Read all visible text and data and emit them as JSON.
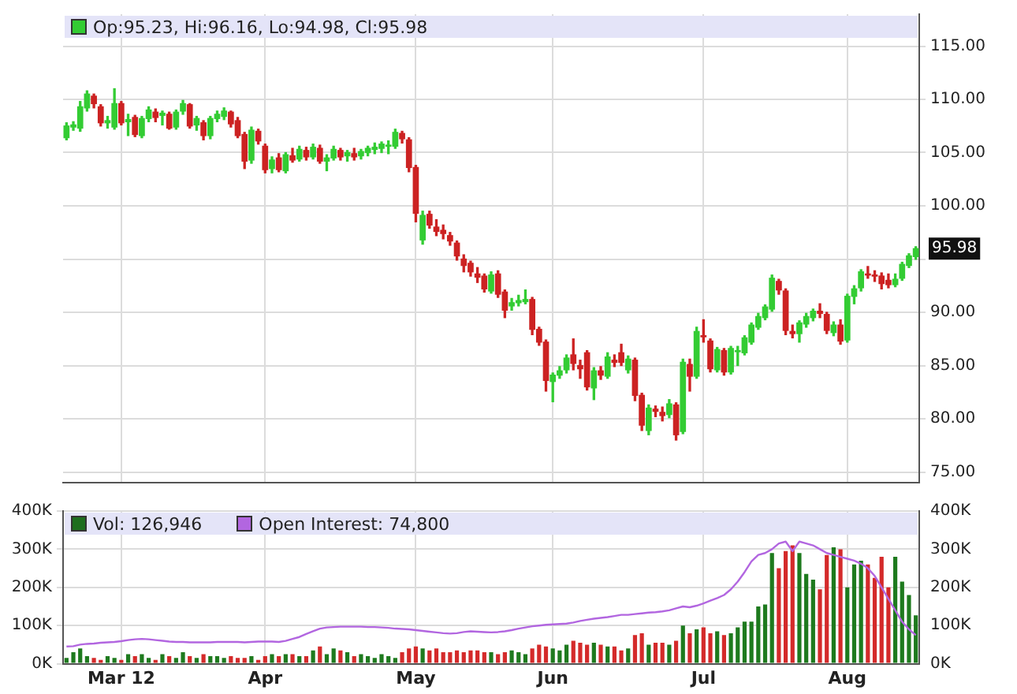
{
  "chart_data": [
    {
      "type": "candlestick",
      "categories": [
        null,
        null,
        null,
        null,
        null,
        null,
        null,
        null,
        null,
        null,
        null,
        null,
        null,
        null,
        null,
        null,
        null,
        null,
        null,
        null,
        null,
        null,
        null,
        null,
        null,
        null,
        null,
        null,
        null,
        null,
        null,
        null,
        null,
        null,
        null,
        null,
        null,
        null,
        null,
        null,
        null,
        null,
        null,
        null,
        null,
        null,
        null,
        null,
        null,
        null,
        null,
        null,
        null,
        null,
        null,
        null,
        null,
        null,
        null,
        null,
        null,
        null,
        null,
        null,
        null,
        null,
        null,
        null,
        null,
        null,
        null,
        null,
        null,
        null,
        null,
        null,
        null,
        null,
        null,
        null,
        null,
        null,
        null,
        null,
        null,
        null,
        null,
        null,
        null,
        null,
        null,
        null,
        null,
        null,
        null,
        null,
        null,
        null,
        null,
        null,
        null,
        null,
        null,
        null,
        null,
        null,
        null,
        null,
        null,
        null,
        null,
        null,
        null,
        null,
        null,
        null,
        null,
        null,
        null,
        null,
        null,
        null,
        null,
        null,
        null
      ],
      "series": [
        {
          "name": "Op:95.23, Hi:96.16, Lo:94.98, Cl:95.98",
          "color": "#33cc33",
          "colors": [
            "#33cc33",
            "#33cc33",
            "#33cc33",
            "#33cc33",
            "#cc2222",
            "#cc2222",
            "#33cc33",
            "#33cc33",
            "#cc2222",
            "#33cc33",
            "#cc2222",
            "#33cc33",
            "#33cc33",
            "#cc2222",
            "#33cc33",
            "#cc2222",
            "#33cc33",
            "#33cc33",
            "#cc2222",
            "#33cc33",
            "#cc2222",
            "#33cc33",
            "#33cc33",
            "#33cc33",
            "#cc2222",
            "#cc2222",
            "#cc2222",
            "#33cc33",
            "#cc2222",
            "#cc2222",
            "#33cc33",
            "#cc2222",
            "#33cc33",
            "#cc2222",
            "#33cc33",
            "#cc2222",
            "#33cc33",
            "#cc2222",
            "#33cc33",
            "#33cc33",
            "#cc2222",
            "#33cc33",
            "#cc2222",
            "#33cc33",
            "#33cc33",
            "#33cc33",
            "#33cc33",
            "#33cc33",
            "#33cc33",
            "#cc2222",
            "#cc2222",
            "#cc2222",
            "#33cc33",
            "#cc2222",
            "#cc2222",
            "#cc2222",
            "#cc2222",
            "#cc2222",
            "#cc2222",
            "#cc2222",
            "#cc2222",
            "#cc2222",
            "#33cc33",
            "#cc2222",
            "#cc2222",
            "#33cc33",
            "#33cc33",
            "#33cc33",
            "#cc2222",
            "#cc2222",
            "#cc2222",
            "#33cc33",
            "#33cc33",
            "#33cc33",
            "#cc2222",
            "#cc2222",
            "#cc2222",
            "#33cc33",
            "#cc2222",
            "#33cc33",
            "#cc2222",
            "#cc2222",
            "#33cc33",
            "#cc2222",
            "#cc2222",
            "#33cc33",
            "#cc2222",
            "#cc2222",
            "#33cc33",
            "#cc2222",
            "#33cc33",
            "#cc2222",
            "#33cc33",
            "#cc2222",
            "#cc2222",
            "#33cc33",
            "#cc2222",
            "#33cc33",
            "#33cc33",
            "#33cc33",
            "#33cc33",
            "#33cc33",
            "#33cc33",
            "#33cc33",
            "#cc2222",
            "#cc2222",
            "#cc2222",
            "#33cc33",
            "#33cc33",
            "#33cc33",
            "#cc2222",
            "#cc2222",
            "#33cc33",
            "#cc2222",
            "#33cc33",
            "#33cc33",
            "#33cc33",
            "#cc2222",
            "#cc2222",
            "#cc2222",
            "#cc2222",
            "#33cc33",
            "#33cc33",
            "#33cc33",
            "#33cc33"
          ],
          "ohlc": [
            [
              106.4,
              107.8,
              106.2,
              107.5
            ],
            [
              107.4,
              107.9,
              107.1,
              107.6
            ],
            [
              107.3,
              109.8,
              107.0,
              109.3
            ],
            [
              109.2,
              110.8,
              108.9,
              110.5
            ],
            [
              110.3,
              110.5,
              109.2,
              109.6
            ],
            [
              109.3,
              109.5,
              107.5,
              107.8
            ],
            [
              107.8,
              108.4,
              107.3,
              108.0
            ],
            [
              107.4,
              111.0,
              107.2,
              109.6
            ],
            [
              109.6,
              109.8,
              107.6,
              107.8
            ],
            [
              107.9,
              108.6,
              106.6,
              108.1
            ],
            [
              108.3,
              108.5,
              106.5,
              106.7
            ],
            [
              106.6,
              108.4,
              106.4,
              108.2
            ],
            [
              108.2,
              109.3,
              107.9,
              109.0
            ],
            [
              108.8,
              109.1,
              107.9,
              108.3
            ],
            [
              108.5,
              108.9,
              107.6,
              108.7
            ],
            [
              108.6,
              108.8,
              107.2,
              107.3
            ],
            [
              107.4,
              109.0,
              107.2,
              108.8
            ],
            [
              108.9,
              109.9,
              108.6,
              109.6
            ],
            [
              109.5,
              109.6,
              107.3,
              107.5
            ],
            [
              107.6,
              108.4,
              107.1,
              108.2
            ],
            [
              107.8,
              108.0,
              106.2,
              106.6
            ],
            [
              106.6,
              108.4,
              106.3,
              108.2
            ],
            [
              108.2,
              108.9,
              107.9,
              108.6
            ],
            [
              108.4,
              109.2,
              108.1,
              108.9
            ],
            [
              108.8,
              108.9,
              107.4,
              107.7
            ],
            [
              108.0,
              108.3,
              106.4,
              106.6
            ],
            [
              106.7,
              106.9,
              103.5,
              104.2
            ],
            [
              104.3,
              107.4,
              104.0,
              107.1
            ],
            [
              107.0,
              107.2,
              105.8,
              106.1
            ],
            [
              105.6,
              105.8,
              103.1,
              103.4
            ],
            [
              103.5,
              104.6,
              103.1,
              104.3
            ],
            [
              104.5,
              104.9,
              103.2,
              103.4
            ],
            [
              103.3,
              105.0,
              103.1,
              104.8
            ],
            [
              104.7,
              105.4,
              104.1,
              104.3
            ],
            [
              104.4,
              105.6,
              104.2,
              105.3
            ],
            [
              105.2,
              105.5,
              104.3,
              104.6
            ],
            [
              104.6,
              105.8,
              104.4,
              105.5
            ],
            [
              105.4,
              105.7,
              104.0,
              104.2
            ],
            [
              104.2,
              104.8,
              103.3,
              104.5
            ],
            [
              104.5,
              105.6,
              104.3,
              105.3
            ],
            [
              105.2,
              105.4,
              104.3,
              104.6
            ],
            [
              104.7,
              105.2,
              104.2,
              105.0
            ],
            [
              104.9,
              105.4,
              104.3,
              104.6
            ],
            [
              104.7,
              105.3,
              104.4,
              105.1
            ],
            [
              105.0,
              105.6,
              104.7,
              105.4
            ],
            [
              105.3,
              105.9,
              104.9,
              105.5
            ],
            [
              105.4,
              106.0,
              105.0,
              105.8
            ],
            [
              105.6,
              106.1,
              104.9,
              105.7
            ],
            [
              105.6,
              107.2,
              105.4,
              106.9
            ],
            [
              106.8,
              107.0,
              105.9,
              106.3
            ],
            [
              106.2,
              106.4,
              103.2,
              103.6
            ],
            [
              103.6,
              103.8,
              98.5,
              99.3
            ],
            [
              96.8,
              99.5,
              96.4,
              99.1
            ],
            [
              99.2,
              99.5,
              97.9,
              98.2
            ],
            [
              98.0,
              98.7,
              97.2,
              97.6
            ],
            [
              97.7,
              98.2,
              96.9,
              97.4
            ],
            [
              97.2,
              97.5,
              96.3,
              96.7
            ],
            [
              96.5,
              96.7,
              94.9,
              95.3
            ],
            [
              95.0,
              95.4,
              93.8,
              94.4
            ],
            [
              94.6,
              94.8,
              93.4,
              93.8
            ],
            [
              93.6,
              94.2,
              92.8,
              93.3
            ],
            [
              93.4,
              93.6,
              91.9,
              92.2
            ],
            [
              92.0,
              93.8,
              91.8,
              93.5
            ],
            [
              93.6,
              93.9,
              91.4,
              91.7
            ],
            [
              91.9,
              92.1,
              89.5,
              90.2
            ],
            [
              90.6,
              91.3,
              90.2,
              90.9
            ],
            [
              90.9,
              91.6,
              90.6,
              91.1
            ],
            [
              91.0,
              92.1,
              90.8,
              91.2
            ],
            [
              91.2,
              91.4,
              87.9,
              88.4
            ],
            [
              88.4,
              88.6,
              86.9,
              87.2
            ],
            [
              87.2,
              87.4,
              82.6,
              83.6
            ],
            [
              83.5,
              84.3,
              81.6,
              84.1
            ],
            [
              84.1,
              84.9,
              83.8,
              84.5
            ],
            [
              84.6,
              86.0,
              84.3,
              85.7
            ],
            [
              86.0,
              87.5,
              84.6,
              85.2
            ],
            [
              85.0,
              85.5,
              83.8,
              84.7
            ],
            [
              86.2,
              86.4,
              82.7,
              83.0
            ],
            [
              82.9,
              84.8,
              81.8,
              84.5
            ],
            [
              84.5,
              84.9,
              83.7,
              84.1
            ],
            [
              84.0,
              86.2,
              83.8,
              85.8
            ],
            [
              85.5,
              86.0,
              84.9,
              85.3
            ],
            [
              86.2,
              87.0,
              85.0,
              85.3
            ],
            [
              84.6,
              85.9,
              84.3,
              85.6
            ],
            [
              85.5,
              85.7,
              81.7,
              82.2
            ],
            [
              82.2,
              82.4,
              78.9,
              79.4
            ],
            [
              78.9,
              81.3,
              78.5,
              81.0
            ],
            [
              80.9,
              81.2,
              80.2,
              80.7
            ],
            [
              80.6,
              81.1,
              79.8,
              80.3
            ],
            [
              80.4,
              81.8,
              80.1,
              81.4
            ],
            [
              81.3,
              81.5,
              78.0,
              78.5
            ],
            [
              78.8,
              85.6,
              78.6,
              85.3
            ],
            [
              85.1,
              85.6,
              82.6,
              84.0
            ],
            [
              84.0,
              88.6,
              83.8,
              88.2
            ],
            [
              87.8,
              89.3,
              87.2,
              87.7
            ],
            [
              87.3,
              87.5,
              84.4,
              84.7
            ],
            [
              84.6,
              86.7,
              84.4,
              86.5
            ],
            [
              86.4,
              86.6,
              84.1,
              84.4
            ],
            [
              84.4,
              86.8,
              84.2,
              86.6
            ],
            [
              86.3,
              86.8,
              85.0,
              86.4
            ],
            [
              86.2,
              87.8,
              86.0,
              87.6
            ],
            [
              87.2,
              89.0,
              87.0,
              88.8
            ],
            [
              88.6,
              89.9,
              88.4,
              89.6
            ],
            [
              89.5,
              90.7,
              89.3,
              90.5
            ],
            [
              90.3,
              93.5,
              90.1,
              93.2
            ],
            [
              92.9,
              93.1,
              91.7,
              92.1
            ],
            [
              92.0,
              92.2,
              87.9,
              88.3
            ],
            [
              88.2,
              88.8,
              87.6,
              88.0
            ],
            [
              88.0,
              89.2,
              87.2,
              89.0
            ],
            [
              88.9,
              89.9,
              88.6,
              89.6
            ],
            [
              89.5,
              90.3,
              89.2,
              90.1
            ],
            [
              90.1,
              90.8,
              89.5,
              89.9
            ],
            [
              89.8,
              90.0,
              88.0,
              88.3
            ],
            [
              88.1,
              89.1,
              87.8,
              88.8
            ],
            [
              88.8,
              89.3,
              87.0,
              87.3
            ],
            [
              87.4,
              91.7,
              87.2,
              91.5
            ],
            [
              91.5,
              92.5,
              90.8,
              92.2
            ],
            [
              92.3,
              94.0,
              92.0,
              93.8
            ],
            [
              93.6,
              94.3,
              93.2,
              93.5
            ],
            [
              93.5,
              93.9,
              92.9,
              93.4
            ],
            [
              93.4,
              93.7,
              92.2,
              92.7
            ],
            [
              93.0,
              93.6,
              92.3,
              92.6
            ],
            [
              92.6,
              93.6,
              92.4,
              93.1
            ],
            [
              93.2,
              94.7,
              93.0,
              94.5
            ],
            [
              94.4,
              95.5,
              94.2,
              95.3
            ],
            [
              95.23,
              96.16,
              94.98,
              95.98
            ]
          ]
        }
      ],
      "ylim": [
        74,
        118
      ],
      "yticks": [
        {
          "value": 75,
          "label": "75.00"
        },
        {
          "value": 80,
          "label": "80.00"
        },
        {
          "value": 85,
          "label": "85.00"
        },
        {
          "value": 90,
          "label": "90.00"
        },
        {
          "value": 95,
          "label": null
        },
        {
          "value": 100,
          "label": "100.00"
        },
        {
          "value": 105,
          "label": "105.00"
        },
        {
          "value": 110,
          "label": "110.00"
        },
        {
          "value": 115,
          "label": "115.00"
        }
      ],
      "grid": true,
      "legend": "top left",
      "tick_labels": "y",
      "annotations": [
        "95.98"
      ]
    },
    {
      "type": "bar",
      "categories": [
        null,
        null,
        null,
        null,
        null,
        null,
        null,
        null,
        "Mar 12",
        null,
        null,
        null,
        null,
        null,
        null,
        null,
        null,
        null,
        null,
        null,
        null,
        null,
        null,
        null,
        null,
        null,
        null,
        null,
        null,
        "Apr",
        null,
        null,
        null,
        null,
        null,
        null,
        null,
        null,
        null,
        null,
        null,
        null,
        null,
        null,
        null,
        null,
        null,
        null,
        null,
        null,
        null,
        "May",
        null,
        null,
        null,
        null,
        null,
        null,
        null,
        null,
        null,
        null,
        null,
        null,
        null,
        null,
        null,
        null,
        null,
        null,
        null,
        "Jun",
        null,
        null,
        null,
        null,
        null,
        null,
        null,
        null,
        null,
        null,
        null,
        null,
        null,
        null,
        null,
        null,
        null,
        null,
        null,
        null,
        null,
        "Jul",
        null,
        null,
        null,
        null,
        null,
        null,
        null,
        null,
        null,
        null,
        null,
        null,
        null,
        null,
        null,
        null,
        null,
        null,
        null,
        null,
        "Aug",
        null,
        null,
        null,
        null,
        null,
        null,
        null,
        null,
        null,
        null
      ],
      "series": [
        {
          "name": "Vol: 126,946",
          "color": "#1e6e1e",
          "colors": [
            "#1e7a1e",
            "#1e7a1e",
            "#1e7a1e",
            "#1e7a1e",
            "#d42a2a",
            "#d42a2a",
            "#1e7a1e",
            "#1e7a1e",
            "#d42a2a",
            "#1e7a1e",
            "#d42a2a",
            "#1e7a1e",
            "#1e7a1e",
            "#d42a2a",
            "#1e7a1e",
            "#d42a2a",
            "#1e7a1e",
            "#1e7a1e",
            "#d42a2a",
            "#1e7a1e",
            "#d42a2a",
            "#1e7a1e",
            "#1e7a1e",
            "#1e7a1e",
            "#d42a2a",
            "#d42a2a",
            "#d42a2a",
            "#1e7a1e",
            "#d42a2a",
            "#d42a2a",
            "#1e7a1e",
            "#d42a2a",
            "#1e7a1e",
            "#d42a2a",
            "#1e7a1e",
            "#d42a2a",
            "#1e7a1e",
            "#d42a2a",
            "#1e7a1e",
            "#1e7a1e",
            "#d42a2a",
            "#1e7a1e",
            "#d42a2a",
            "#1e7a1e",
            "#1e7a1e",
            "#1e7a1e",
            "#1e7a1e",
            "#1e7a1e",
            "#1e7a1e",
            "#d42a2a",
            "#d42a2a",
            "#d42a2a",
            "#1e7a1e",
            "#d42a2a",
            "#d42a2a",
            "#d42a2a",
            "#d42a2a",
            "#d42a2a",
            "#d42a2a",
            "#d42a2a",
            "#d42a2a",
            "#d42a2a",
            "#1e7a1e",
            "#d42a2a",
            "#d42a2a",
            "#1e7a1e",
            "#1e7a1e",
            "#1e7a1e",
            "#d42a2a",
            "#d42a2a",
            "#d42a2a",
            "#1e7a1e",
            "#1e7a1e",
            "#1e7a1e",
            "#d42a2a",
            "#d42a2a",
            "#d42a2a",
            "#1e7a1e",
            "#d42a2a",
            "#1e7a1e",
            "#d42a2a",
            "#d42a2a",
            "#1e7a1e",
            "#d42a2a",
            "#d42a2a",
            "#1e7a1e",
            "#d42a2a",
            "#d42a2a",
            "#1e7a1e",
            "#d42a2a",
            "#1e7a1e",
            "#d42a2a",
            "#1e7a1e",
            "#d42a2a",
            "#d42a2a",
            "#1e7a1e",
            "#d42a2a",
            "#1e7a1e",
            "#1e7a1e",
            "#1e7a1e",
            "#1e7a1e",
            "#1e7a1e",
            "#1e7a1e",
            "#1e7a1e",
            "#d42a2a",
            "#d42a2a",
            "#d42a2a",
            "#1e7a1e",
            "#1e7a1e",
            "#1e7a1e",
            "#d42a2a",
            "#d42a2a",
            "#1e7a1e",
            "#d42a2a",
            "#1e7a1e",
            "#1e7a1e",
            "#1e7a1e",
            "#d42a2a",
            "#d42a2a",
            "#d42a2a",
            "#d42a2a",
            "#1e7a1e",
            "#1e7a1e",
            "#1e7a1e",
            "#1e7a1e"
          ],
          "values": [
            15,
            30,
            40,
            20,
            15,
            10,
            20,
            15,
            10,
            25,
            20,
            25,
            15,
            10,
            25,
            20,
            15,
            30,
            20,
            15,
            25,
            20,
            20,
            15,
            20,
            15,
            15,
            20,
            10,
            20,
            25,
            20,
            25,
            25,
            20,
            20,
            35,
            45,
            25,
            40,
            35,
            30,
            20,
            25,
            20,
            15,
            25,
            20,
            15,
            30,
            40,
            45,
            40,
            35,
            40,
            30,
            30,
            35,
            30,
            35,
            35,
            30,
            30,
            25,
            30,
            35,
            30,
            25,
            40,
            50,
            45,
            40,
            35,
            50,
            60,
            55,
            50,
            55,
            50,
            45,
            45,
            35,
            40,
            75,
            80,
            50,
            55,
            55,
            50,
            60,
            100,
            80,
            90,
            95,
            80,
            85,
            75,
            80,
            95,
            110,
            110,
            150,
            155,
            290,
            250,
            295,
            310,
            290,
            235,
            220,
            195,
            285,
            305,
            300,
            200,
            260,
            270,
            260,
            225,
            280,
            200,
            280,
            215,
            180,
            126.946
          ]
        },
        {
          "name": "Open Interest: 74,800",
          "type": "line",
          "color": "#b266e0",
          "values": [
            45,
            46,
            50,
            52,
            53,
            55,
            56,
            57,
            59,
            62,
            64,
            65,
            64,
            62,
            60,
            58,
            57,
            57,
            56,
            56,
            56,
            56,
            57,
            57,
            57,
            57,
            56,
            57,
            58,
            58,
            58,
            57,
            60,
            65,
            70,
            78,
            85,
            92,
            95,
            96,
            97,
            97,
            97,
            97,
            96,
            96,
            95,
            94,
            92,
            91,
            90,
            88,
            86,
            84,
            82,
            80,
            79,
            80,
            83,
            85,
            84,
            83,
            82,
            83,
            85,
            88,
            92,
            95,
            98,
            100,
            102,
            103,
            104,
            105,
            108,
            112,
            115,
            118,
            120,
            122,
            125,
            128,
            128,
            130,
            132,
            134,
            135,
            137,
            140,
            145,
            150,
            148,
            152,
            158,
            165,
            172,
            180,
            195,
            215,
            240,
            268,
            285,
            290,
            300,
            315,
            320,
            295,
            320,
            315,
            310,
            300,
            290,
            285,
            280,
            275,
            270,
            262,
            250,
            230,
            200,
            170,
            140,
            110,
            90,
            74.8
          ]
        }
      ],
      "ylim": [
        0,
        400
      ],
      "yticks": [
        {
          "value": 0,
          "label": "0K"
        },
        {
          "value": 100,
          "label": "100K"
        },
        {
          "value": 200,
          "label": "200K"
        },
        {
          "value": 300,
          "label": "300K"
        },
        {
          "value": 400,
          "label": "400K"
        }
      ],
      "y2lim": [
        0,
        400
      ],
      "y2ticks": [
        {
          "value": 0,
          "label": "0K"
        },
        {
          "value": 100,
          "label": "100K"
        },
        {
          "value": 200,
          "label": "200K"
        },
        {
          "value": 300,
          "label": "300K"
        },
        {
          "value": 400,
          "label": "400K"
        }
      ],
      "grid": true,
      "legend": "top left",
      "marker": "none"
    }
  ]
}
